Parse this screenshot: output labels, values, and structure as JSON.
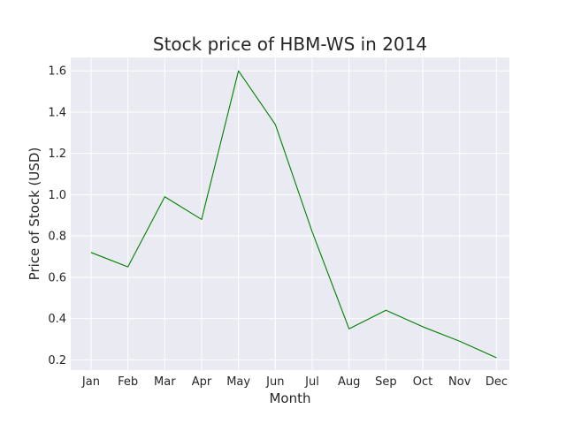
{
  "chart_data": {
    "type": "line",
    "title": "Stock price of HBM-WS in 2014",
    "xlabel": "Month",
    "ylabel": "Price of Stock (USD)",
    "categories": [
      "Jan",
      "Feb",
      "Mar",
      "Apr",
      "May",
      "Jun",
      "Jul",
      "Aug",
      "Sep",
      "Oct",
      "Nov",
      "Dec"
    ],
    "series": [
      {
        "values": [
          0.72,
          0.65,
          0.99,
          0.88,
          1.6,
          1.34,
          0.82,
          0.35,
          0.44,
          0.36,
          0.29,
          0.21
        ]
      }
    ],
    "yticks": [
      0.2,
      0.4,
      0.6,
      0.8,
      1.0,
      1.2,
      1.4,
      1.6
    ],
    "ytick_labels": [
      "0.2",
      "0.4",
      "0.6",
      "0.8",
      "1.0",
      "1.2",
      "1.4",
      "1.6"
    ],
    "ylim": [
      0.15,
      1.665
    ],
    "grid": true,
    "colors": {
      "line": "#008000",
      "plot_background": "#eaeaf2",
      "grid": "#ffffff"
    }
  }
}
